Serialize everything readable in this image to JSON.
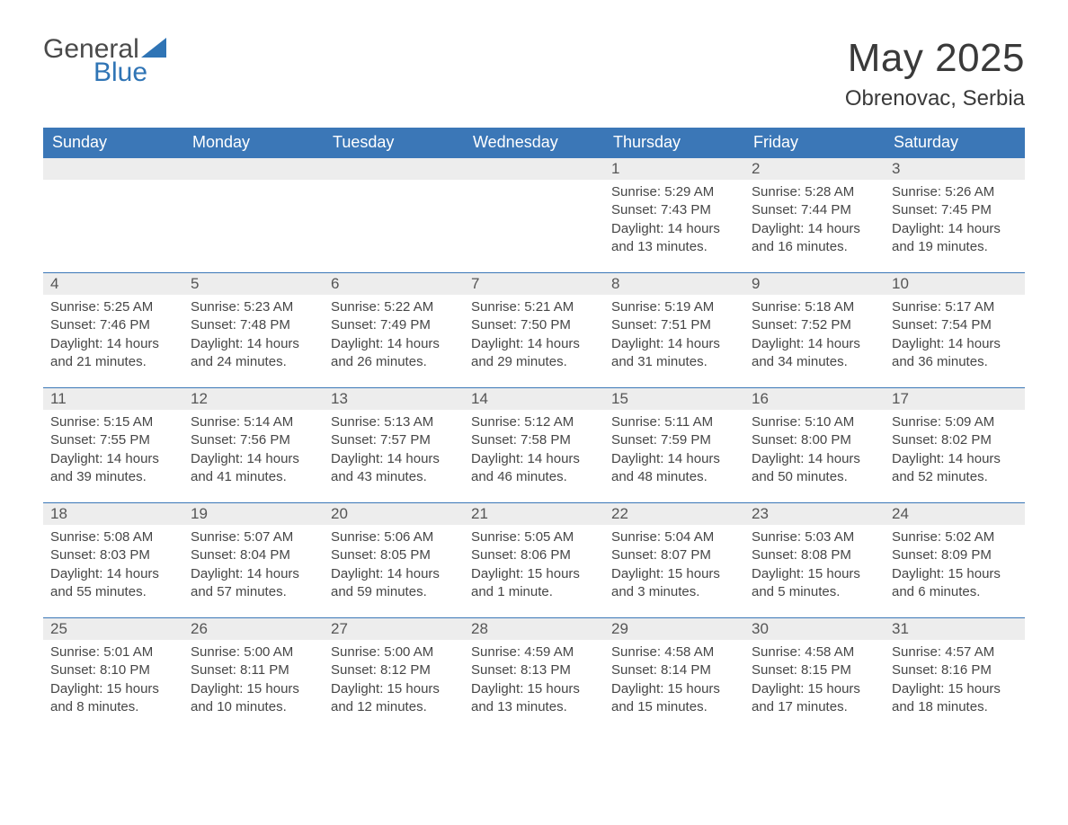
{
  "logo": {
    "text_general": "General",
    "text_blue": "Blue",
    "shape_color": "#2f74b5"
  },
  "header": {
    "month_title": "May 2025",
    "location": "Obrenovac, Serbia"
  },
  "style": {
    "header_bg": "#3b77b7",
    "header_fg": "#ffffff",
    "daynum_bg": "#ededed",
    "daynum_border": "#3b77b7",
    "body_bg": "#ffffff",
    "text_color": "#464646",
    "font_family": "Segoe UI, Arial, Helvetica, sans-serif"
  },
  "calendar": {
    "type": "table",
    "columns": [
      "Sunday",
      "Monday",
      "Tuesday",
      "Wednesday",
      "Thursday",
      "Friday",
      "Saturday"
    ],
    "weeks": [
      [
        null,
        null,
        null,
        null,
        {
          "n": "1",
          "sunrise": "Sunrise: 5:29 AM",
          "sunset": "Sunset: 7:43 PM",
          "daylight": "Daylight: 14 hours and 13 minutes."
        },
        {
          "n": "2",
          "sunrise": "Sunrise: 5:28 AM",
          "sunset": "Sunset: 7:44 PM",
          "daylight": "Daylight: 14 hours and 16 minutes."
        },
        {
          "n": "3",
          "sunrise": "Sunrise: 5:26 AM",
          "sunset": "Sunset: 7:45 PM",
          "daylight": "Daylight: 14 hours and 19 minutes."
        }
      ],
      [
        {
          "n": "4",
          "sunrise": "Sunrise: 5:25 AM",
          "sunset": "Sunset: 7:46 PM",
          "daylight": "Daylight: 14 hours and 21 minutes."
        },
        {
          "n": "5",
          "sunrise": "Sunrise: 5:23 AM",
          "sunset": "Sunset: 7:48 PM",
          "daylight": "Daylight: 14 hours and 24 minutes."
        },
        {
          "n": "6",
          "sunrise": "Sunrise: 5:22 AM",
          "sunset": "Sunset: 7:49 PM",
          "daylight": "Daylight: 14 hours and 26 minutes."
        },
        {
          "n": "7",
          "sunrise": "Sunrise: 5:21 AM",
          "sunset": "Sunset: 7:50 PM",
          "daylight": "Daylight: 14 hours and 29 minutes."
        },
        {
          "n": "8",
          "sunrise": "Sunrise: 5:19 AM",
          "sunset": "Sunset: 7:51 PM",
          "daylight": "Daylight: 14 hours and 31 minutes."
        },
        {
          "n": "9",
          "sunrise": "Sunrise: 5:18 AM",
          "sunset": "Sunset: 7:52 PM",
          "daylight": "Daylight: 14 hours and 34 minutes."
        },
        {
          "n": "10",
          "sunrise": "Sunrise: 5:17 AM",
          "sunset": "Sunset: 7:54 PM",
          "daylight": "Daylight: 14 hours and 36 minutes."
        }
      ],
      [
        {
          "n": "11",
          "sunrise": "Sunrise: 5:15 AM",
          "sunset": "Sunset: 7:55 PM",
          "daylight": "Daylight: 14 hours and 39 minutes."
        },
        {
          "n": "12",
          "sunrise": "Sunrise: 5:14 AM",
          "sunset": "Sunset: 7:56 PM",
          "daylight": "Daylight: 14 hours and 41 minutes."
        },
        {
          "n": "13",
          "sunrise": "Sunrise: 5:13 AM",
          "sunset": "Sunset: 7:57 PM",
          "daylight": "Daylight: 14 hours and 43 minutes."
        },
        {
          "n": "14",
          "sunrise": "Sunrise: 5:12 AM",
          "sunset": "Sunset: 7:58 PM",
          "daylight": "Daylight: 14 hours and 46 minutes."
        },
        {
          "n": "15",
          "sunrise": "Sunrise: 5:11 AM",
          "sunset": "Sunset: 7:59 PM",
          "daylight": "Daylight: 14 hours and 48 minutes."
        },
        {
          "n": "16",
          "sunrise": "Sunrise: 5:10 AM",
          "sunset": "Sunset: 8:00 PM",
          "daylight": "Daylight: 14 hours and 50 minutes."
        },
        {
          "n": "17",
          "sunrise": "Sunrise: 5:09 AM",
          "sunset": "Sunset: 8:02 PM",
          "daylight": "Daylight: 14 hours and 52 minutes."
        }
      ],
      [
        {
          "n": "18",
          "sunrise": "Sunrise: 5:08 AM",
          "sunset": "Sunset: 8:03 PM",
          "daylight": "Daylight: 14 hours and 55 minutes."
        },
        {
          "n": "19",
          "sunrise": "Sunrise: 5:07 AM",
          "sunset": "Sunset: 8:04 PM",
          "daylight": "Daylight: 14 hours and 57 minutes."
        },
        {
          "n": "20",
          "sunrise": "Sunrise: 5:06 AM",
          "sunset": "Sunset: 8:05 PM",
          "daylight": "Daylight: 14 hours and 59 minutes."
        },
        {
          "n": "21",
          "sunrise": "Sunrise: 5:05 AM",
          "sunset": "Sunset: 8:06 PM",
          "daylight": "Daylight: 15 hours and 1 minute."
        },
        {
          "n": "22",
          "sunrise": "Sunrise: 5:04 AM",
          "sunset": "Sunset: 8:07 PM",
          "daylight": "Daylight: 15 hours and 3 minutes."
        },
        {
          "n": "23",
          "sunrise": "Sunrise: 5:03 AM",
          "sunset": "Sunset: 8:08 PM",
          "daylight": "Daylight: 15 hours and 5 minutes."
        },
        {
          "n": "24",
          "sunrise": "Sunrise: 5:02 AM",
          "sunset": "Sunset: 8:09 PM",
          "daylight": "Daylight: 15 hours and 6 minutes."
        }
      ],
      [
        {
          "n": "25",
          "sunrise": "Sunrise: 5:01 AM",
          "sunset": "Sunset: 8:10 PM",
          "daylight": "Daylight: 15 hours and 8 minutes."
        },
        {
          "n": "26",
          "sunrise": "Sunrise: 5:00 AM",
          "sunset": "Sunset: 8:11 PM",
          "daylight": "Daylight: 15 hours and 10 minutes."
        },
        {
          "n": "27",
          "sunrise": "Sunrise: 5:00 AM",
          "sunset": "Sunset: 8:12 PM",
          "daylight": "Daylight: 15 hours and 12 minutes."
        },
        {
          "n": "28",
          "sunrise": "Sunrise: 4:59 AM",
          "sunset": "Sunset: 8:13 PM",
          "daylight": "Daylight: 15 hours and 13 minutes."
        },
        {
          "n": "29",
          "sunrise": "Sunrise: 4:58 AM",
          "sunset": "Sunset: 8:14 PM",
          "daylight": "Daylight: 15 hours and 15 minutes."
        },
        {
          "n": "30",
          "sunrise": "Sunrise: 4:58 AM",
          "sunset": "Sunset: 8:15 PM",
          "daylight": "Daylight: 15 hours and 17 minutes."
        },
        {
          "n": "31",
          "sunrise": "Sunrise: 4:57 AM",
          "sunset": "Sunset: 8:16 PM",
          "daylight": "Daylight: 15 hours and 18 minutes."
        }
      ]
    ]
  }
}
